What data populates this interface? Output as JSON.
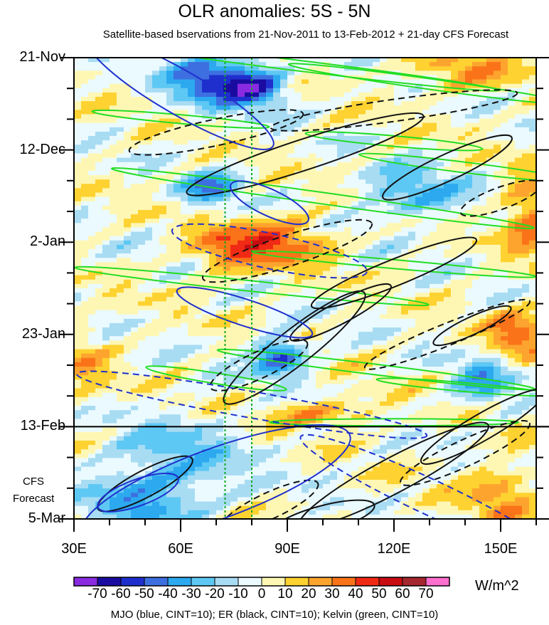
{
  "chart_data": {
    "type": "heatmap",
    "title": "OLR anomalies: 5S - 5N",
    "subtitle": "Satellite-based bservations from 21-Nov-2011 to 13-Feb-2012 + 21-day CFS Forecast",
    "x_tick_labels": [
      "30E",
      "60E",
      "90E",
      "120E",
      "150E"
    ],
    "x_ticks": [
      30,
      60,
      90,
      120,
      150
    ],
    "xlim": [
      30,
      160
    ],
    "y_tick_labels": [
      "21-Nov",
      "12-Dec",
      "2-Jan",
      "23-Jan",
      "13-Feb",
      "5-Mar"
    ],
    "y_ticks": [
      0,
      21,
      42,
      63,
      84,
      105
    ],
    "ylim": [
      0,
      105
    ],
    "forecast_start": 84,
    "forecast_note": [
      "CFS",
      "Forecast"
    ],
    "colorbar": {
      "labels": [
        "-70",
        "-60",
        "-50",
        "-40",
        "-30",
        "-20",
        "-10",
        "0",
        "10",
        "20",
        "30",
        "40",
        "50",
        "60",
        "70"
      ],
      "levels": [
        -70,
        -60,
        -50,
        -40,
        -30,
        -20,
        -10,
        0,
        10,
        20,
        30,
        40,
        50,
        60,
        70
      ],
      "colors": [
        "#8a2be2",
        "#1a0ca0",
        "#1f2fcd",
        "#3d6fe0",
        "#2ca9ef",
        "#5ec8f4",
        "#a8dcf3",
        "#eafaff",
        "#fef7b4",
        "#fed230",
        "#fda42e",
        "#fb7318",
        "#f02a14",
        "#c80d12",
        "#a5272f",
        "#ff6fd0"
      ],
      "unit": "W/m^2"
    },
    "reference_lines_lon": [
      72.5,
      80
    ],
    "contour_legend": "MJO (blue, CINT=10); ER (black, CINT=10); Kelvin (green, CINT=10)"
  }
}
